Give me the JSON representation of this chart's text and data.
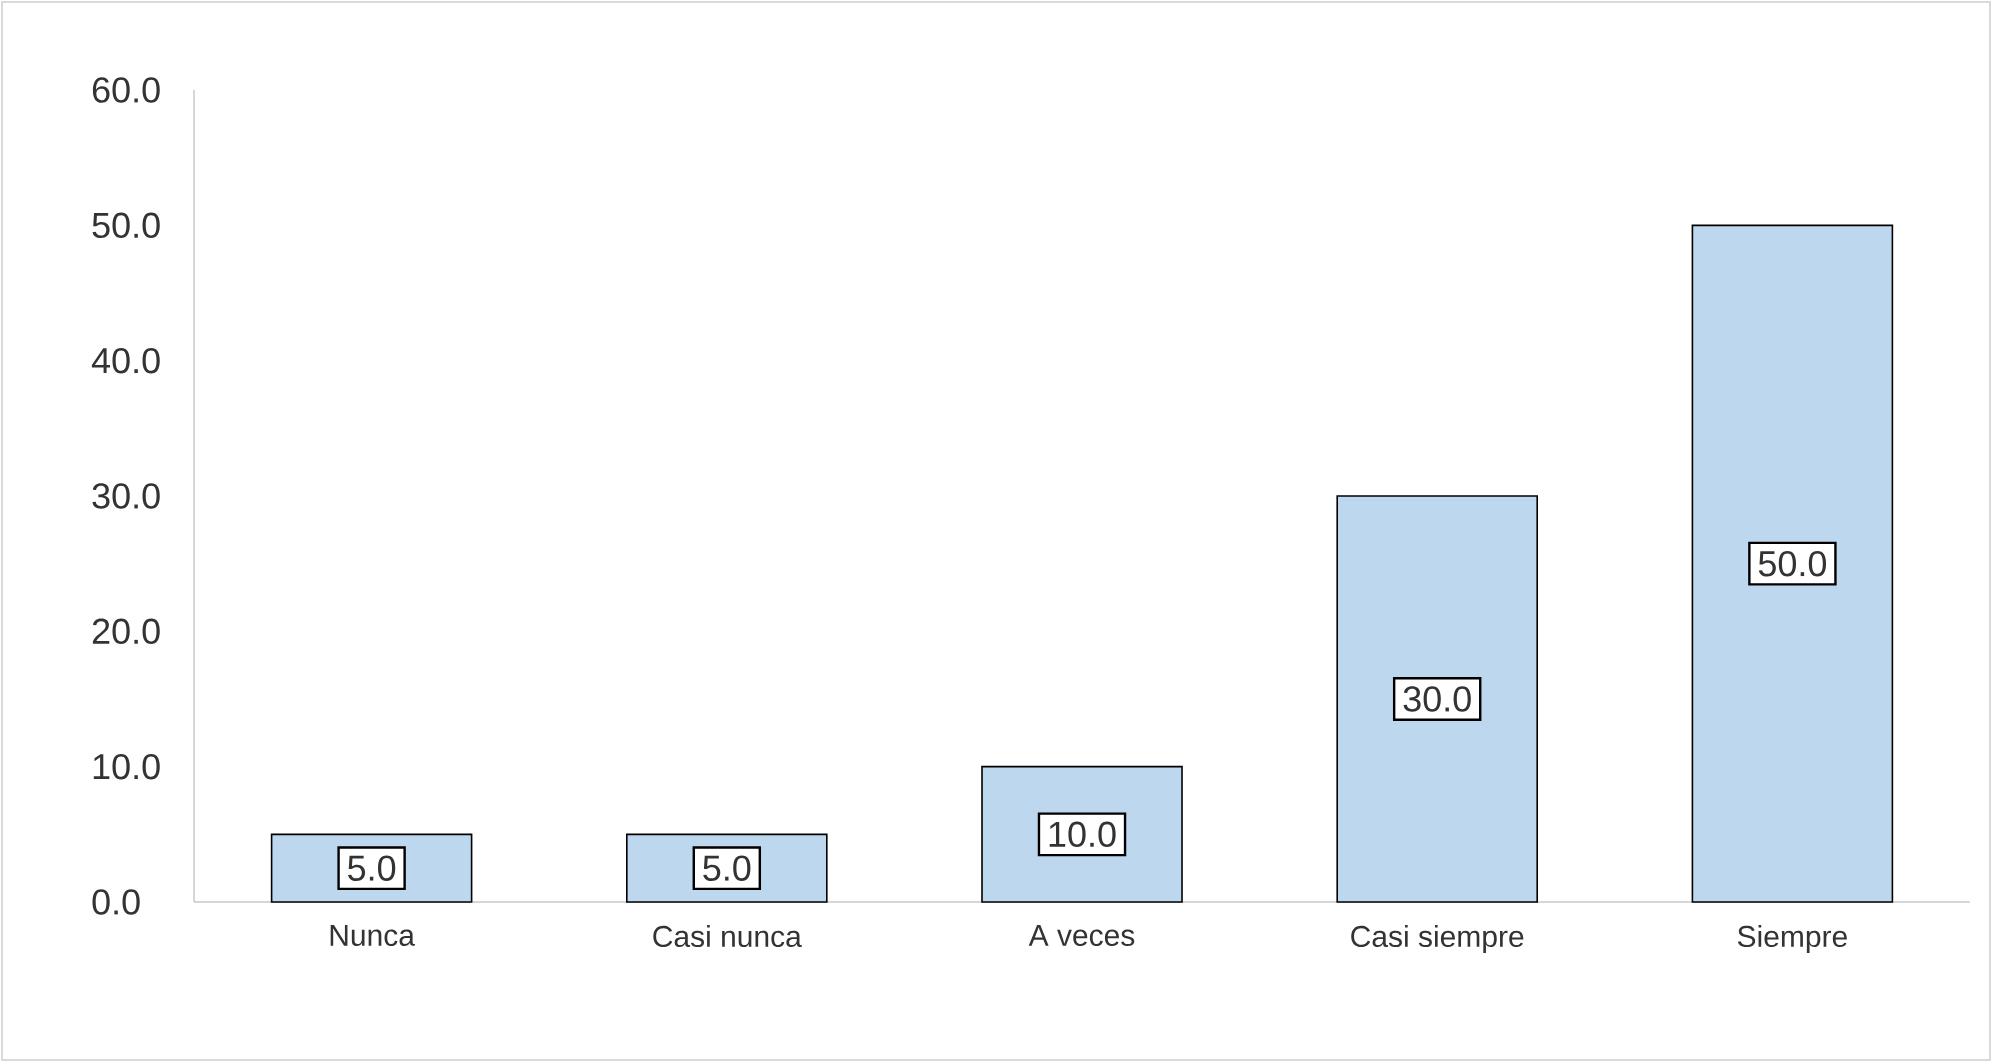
{
  "chart_data": {
    "type": "bar",
    "categories": [
      "Nunca",
      "Casi nunca",
      "A veces",
      "Casi siempre",
      "Siempre"
    ],
    "values": [
      5,
      5,
      10,
      30,
      50
    ],
    "value_labels": [
      "5.0",
      "5.0",
      "10.0",
      "30.0",
      "50.0"
    ],
    "color": "#bdd7ee",
    "ylim": [
      0,
      60
    ],
    "yticks": [
      {
        "value": 0,
        "label": "0.0"
      },
      {
        "value": 10,
        "label": "10.0"
      },
      {
        "value": 20,
        "label": "20.0"
      },
      {
        "value": 30,
        "label": "30.0"
      },
      {
        "value": 40,
        "label": "40.0"
      },
      {
        "value": 50,
        "label": "50.0"
      },
      {
        "value": 60,
        "label": "60.0"
      }
    ]
  }
}
